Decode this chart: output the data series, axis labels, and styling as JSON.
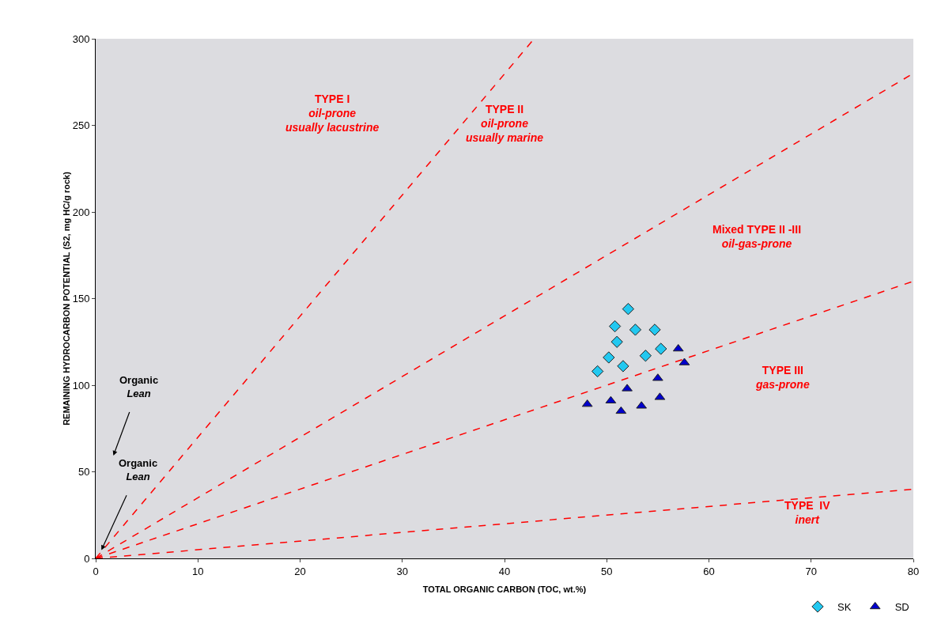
{
  "chart_data": {
    "type": "scatter",
    "xlabel": "TOTAL ORGANIC CARBON (TOC, wt.%)",
    "ylabel": "REMAINING HYDROCARBON POTENTIAL (S2, mg HC/g rock)",
    "xlim": [
      0,
      80
    ],
    "xticks": [
      0,
      10,
      20,
      30,
      40,
      50,
      60,
      70,
      80
    ],
    "ylim": [
      0,
      300
    ],
    "yticks": [
      0,
      50,
      100,
      150,
      200,
      250,
      300
    ],
    "grid": false,
    "legend": "bottom right",
    "series": [
      {
        "type": "line",
        "color": "#ff0000",
        "line_style": "dashed",
        "x": [
          0,
          42.9
        ],
        "values": [
          0,
          300
        ]
      },
      {
        "type": "line",
        "color": "#ff0000",
        "line_style": "dashed",
        "x": [
          0,
          80
        ],
        "values": [
          0,
          280
        ]
      },
      {
        "type": "line",
        "color": "#ff0000",
        "line_style": "dashed",
        "x": [
          0,
          80
        ],
        "values": [
          0,
          160
        ]
      },
      {
        "type": "line",
        "color": "#ff0000",
        "line_style": "dashed",
        "x": [
          0,
          80
        ],
        "values": [
          0,
          40
        ]
      },
      {
        "name": "SK",
        "color": "#22c8f0",
        "marker": "diamond",
        "x": [
          52.1,
          50.8,
          52.8,
          54.7,
          51.0,
          50.2,
          51.6,
          53.8,
          55.3,
          49.1
        ],
        "values": [
          144,
          134,
          132,
          132,
          125,
          116,
          111,
          117,
          121,
          108
        ]
      },
      {
        "name": "SD",
        "color": "#0000cc",
        "marker": "triangle",
        "x": [
          57.0,
          57.6,
          55.0,
          52.0,
          48.1,
          50.4,
          55.2,
          53.4,
          51.4
        ],
        "values": [
          121,
          113,
          104,
          98,
          89,
          91,
          93,
          88,
          85
        ]
      }
    ],
    "annotations": [
      "TYPE I\noil-prone\nusually lacustrine",
      "TYPE II\noil-prone\nusually marine",
      "Mixed TYPE II -III\noil-gas-prone",
      "TYPE III\ngas-prone",
      "TYPE  IV\ninert",
      "Organic\nLean",
      {
        "text": "Organic\nLean",
        "x": 0.5,
        "y": 4
      }
    ]
  }
}
